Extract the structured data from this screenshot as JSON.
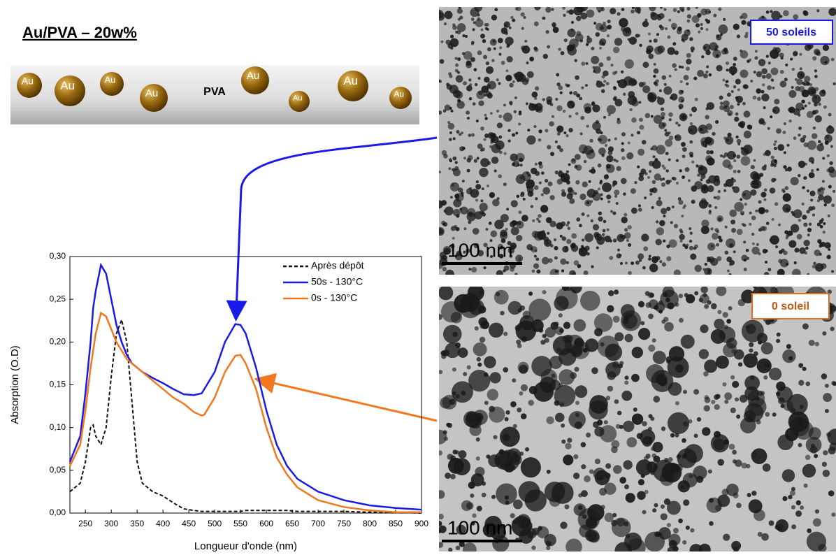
{
  "header": {
    "title": "Au/PVA – 20w%"
  },
  "diagram": {
    "matrix_label": "PVA",
    "particles": [
      "Au",
      "Au",
      "Au",
      "Au",
      "Au",
      "Au",
      "Au",
      "Au"
    ]
  },
  "images": [
    {
      "label": "50 soleils",
      "scale_bar": "100 nm"
    },
    {
      "label": "0 soleil",
      "scale_bar": "100 nm"
    }
  ],
  "chart_data": {
    "type": "line",
    "x_label": "Longueur d'onde (nm)",
    "y_label": "Absorption (O.D)",
    "x": [
      220,
      240,
      250,
      260,
      265,
      270,
      280,
      290,
      300,
      310,
      320,
      330,
      340,
      350,
      360,
      380,
      400,
      420,
      440,
      460,
      475,
      480,
      500,
      520,
      540,
      550,
      560,
      580,
      600,
      620,
      640,
      660,
      700,
      750,
      800,
      850,
      900
    ],
    "series": [
      {
        "name": "Après dépôt",
        "color": "#111111",
        "dashed": true,
        "values": [
          0.025,
          0.035,
          0.06,
          0.1,
          0.103,
          0.09,
          0.08,
          0.1,
          0.16,
          0.21,
          0.226,
          0.2,
          0.13,
          0.06,
          0.035,
          0.025,
          0.02,
          0.012,
          0.005,
          0.003,
          0.002,
          0.002,
          0.002,
          0.002,
          0.002,
          0.002,
          0.003,
          0.003,
          0.003,
          0.003,
          0.003,
          0.002,
          0.002,
          0.002,
          0.001,
          0.001,
          0.0
        ]
      },
      {
        "name": "50s - 130°C",
        "color": "#1a1ae6",
        "dashed": false,
        "values": [
          0.06,
          0.09,
          0.14,
          0.2,
          0.24,
          0.26,
          0.29,
          0.28,
          0.25,
          0.22,
          0.2,
          0.185,
          0.175,
          0.17,
          0.165,
          0.158,
          0.152,
          0.145,
          0.139,
          0.138,
          0.14,
          0.145,
          0.165,
          0.2,
          0.221,
          0.22,
          0.21,
          0.17,
          0.12,
          0.08,
          0.055,
          0.04,
          0.025,
          0.015,
          0.009,
          0.006,
          0.004
        ]
      },
      {
        "name": "0s - 130°C",
        "color": "#f07820",
        "dashed": false,
        "values": [
          0.055,
          0.08,
          0.12,
          0.17,
          0.19,
          0.21,
          0.234,
          0.23,
          0.215,
          0.2,
          0.19,
          0.18,
          0.175,
          0.17,
          0.165,
          0.155,
          0.145,
          0.135,
          0.128,
          0.118,
          0.114,
          0.115,
          0.135,
          0.165,
          0.184,
          0.185,
          0.175,
          0.145,
          0.1,
          0.065,
          0.045,
          0.03,
          0.015,
          0.007,
          0.003,
          0.001,
          0.001
        ]
      }
    ],
    "xlim": [
      220,
      900
    ],
    "xticks": [
      250,
      300,
      350,
      400,
      450,
      500,
      550,
      600,
      650,
      700,
      750,
      800,
      850,
      900
    ],
    "ylim": [
      0,
      0.3
    ],
    "yticks": [
      {
        "value": 0,
        "label": "0,00"
      },
      {
        "value": 0.05,
        "label": "0,05"
      },
      {
        "value": 0.1,
        "label": "0,10"
      },
      {
        "value": 0.15,
        "label": "0,15"
      },
      {
        "value": 0.2,
        "label": "0,20"
      },
      {
        "value": 0.25,
        "label": "0,25"
      },
      {
        "value": 0.3,
        "label": "0,30"
      }
    ],
    "legend": "top-right",
    "grid": false
  }
}
